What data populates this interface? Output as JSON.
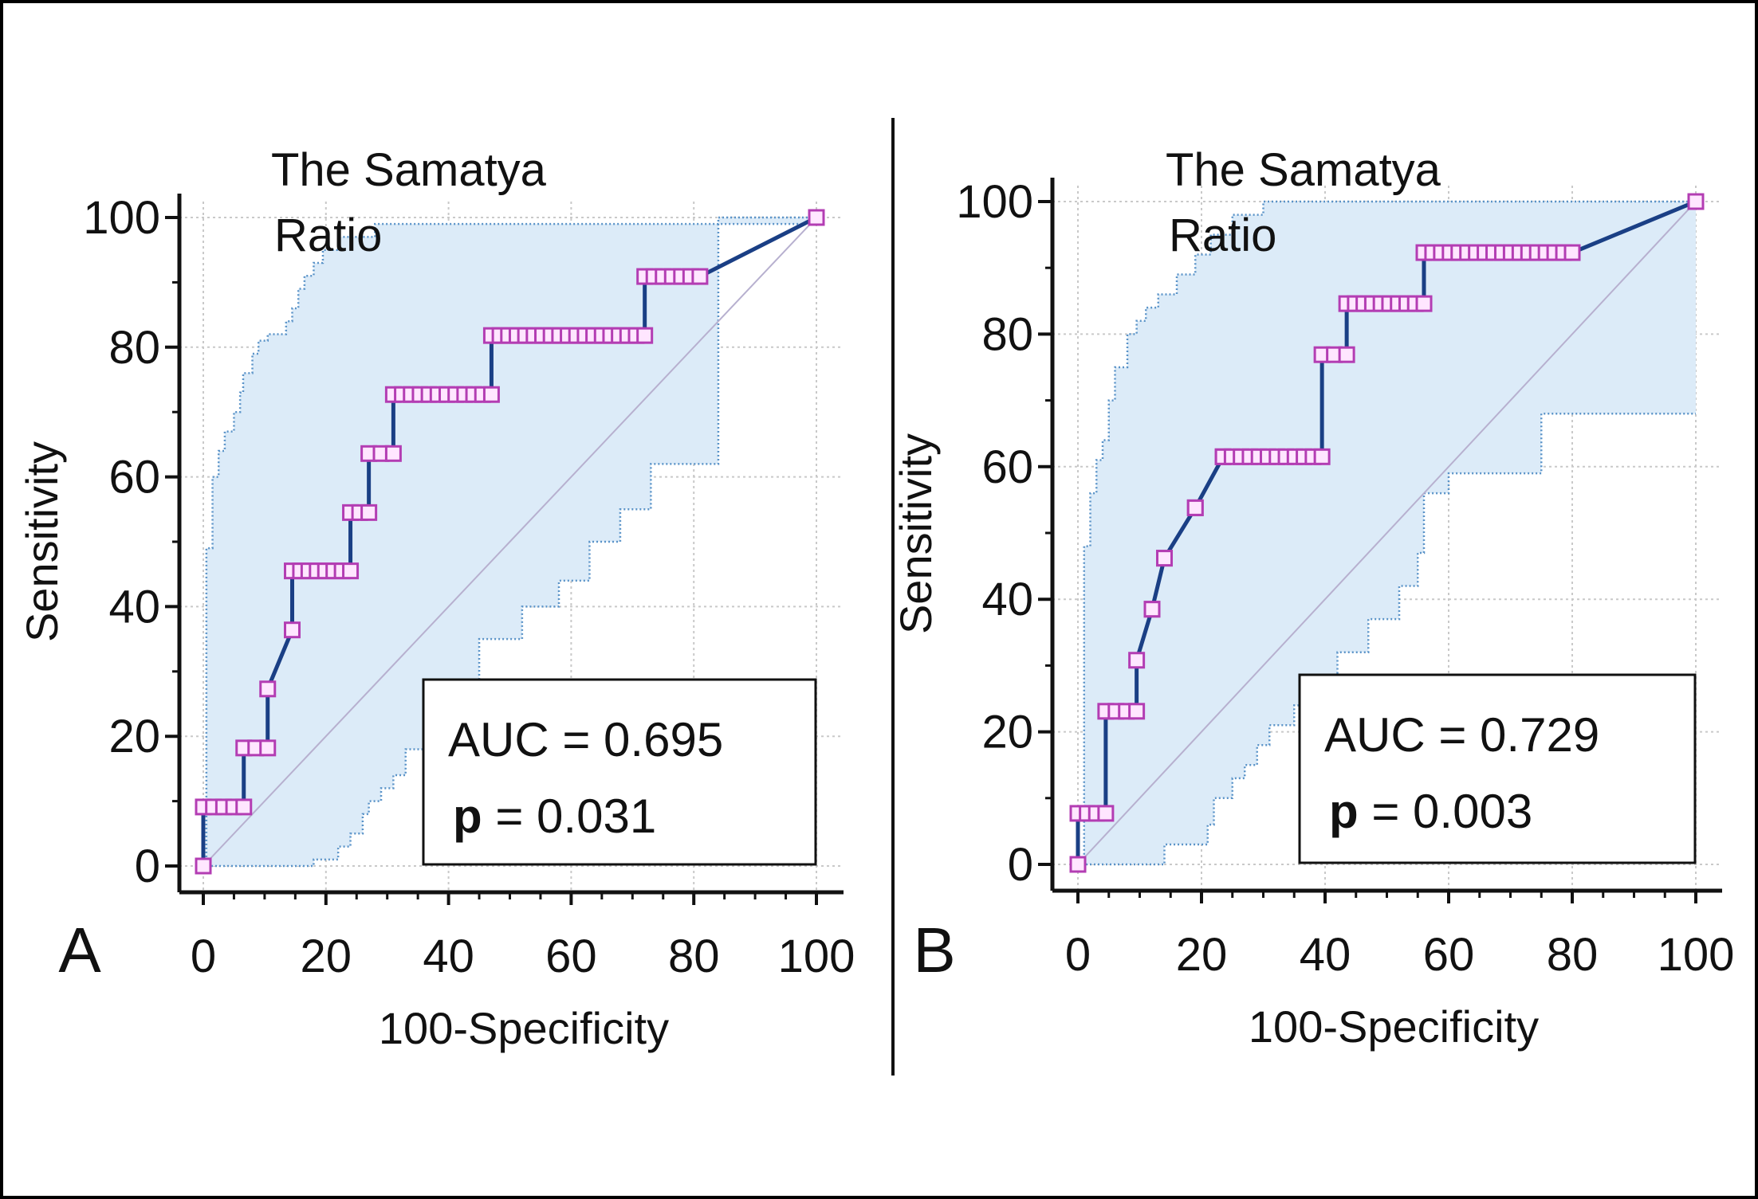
{
  "figure": {
    "panels": [
      {
        "label": "A",
        "title_line1": "The Samatya",
        "title_line2": "Ratio",
        "auc_text": "AUC = 0.695",
        "p_prefix": "p",
        "p_value_text": " = 0.031"
      },
      {
        "label": "B",
        "title_line1": "The Samatya",
        "title_line2": "Ratio",
        "auc_text": "AUC = 0.729",
        "p_prefix": "p",
        "p_value_text": " = 0.003"
      }
    ]
  },
  "colors": {
    "roc_line": "#1a3f85",
    "marker_edge": "#b33db3",
    "marker_fill": "#ffe6ff",
    "ci_fill": "#dcebf8",
    "ci_line": "#5a93c8",
    "diagonal": "#b7b0cf",
    "grid": "#c9c9c9"
  },
  "chart_data": [
    {
      "type": "line",
      "panel": "A",
      "title": "The Samatya Ratio",
      "xlabel": "100-Specificity",
      "ylabel": "Sensitivity",
      "xlim": [
        0,
        100
      ],
      "ylim": [
        0,
        100
      ],
      "xticks": [
        0,
        20,
        40,
        60,
        80,
        100
      ],
      "yticks": [
        0,
        20,
        40,
        60,
        80,
        100
      ],
      "grid": true,
      "annotation": {
        "auc": 0.695,
        "p": 0.031
      },
      "roc": {
        "x": [
          0,
          0,
          6.6,
          6.6,
          10.5,
          10.5,
          14.5,
          14.5,
          24,
          24,
          27,
          27,
          31,
          31,
          47,
          47,
          72,
          72,
          81,
          100
        ],
        "y": [
          0,
          9.1,
          9.1,
          18.2,
          18.2,
          27.3,
          36.4,
          45.5,
          45.5,
          54.5,
          54.5,
          63.6,
          63.6,
          72.7,
          72.7,
          81.8,
          81.8,
          90.9,
          90.9,
          100
        ]
      },
      "ci_upper": {
        "x": [
          0,
          0.5,
          1.5,
          2.5,
          3.5,
          5,
          6,
          6.5,
          8,
          9,
          10.5,
          13,
          13.5,
          14.5,
          15.5,
          16.5,
          18,
          19.5,
          22,
          28,
          35,
          100
        ],
        "y": [
          0,
          49,
          60,
          64,
          67,
          70,
          73,
          76,
          79,
          81,
          82,
          82,
          84,
          86,
          89,
          91,
          93,
          95,
          97,
          99,
          99,
          100
        ]
      },
      "ci_lower": {
        "x": [
          0,
          18,
          22,
          24,
          26,
          27,
          29,
          31,
          33,
          36,
          39,
          45,
          52,
          58,
          63,
          68,
          73,
          84,
          100
        ],
        "y": [
          0,
          0,
          1,
          3,
          5,
          8,
          10,
          12,
          14,
          18,
          22,
          27,
          35,
          40,
          44,
          50,
          55,
          62,
          100
        ]
      }
    },
    {
      "type": "line",
      "panel": "B",
      "title": "The Samatya Ratio",
      "xlabel": "100-Specificity",
      "ylabel": "Sensitivity",
      "xlim": [
        0,
        100
      ],
      "ylim": [
        0,
        100
      ],
      "xticks": [
        0,
        20,
        40,
        60,
        80,
        100
      ],
      "yticks": [
        0,
        20,
        40,
        60,
        80,
        100
      ],
      "grid": true,
      "annotation": {
        "auc": 0.729,
        "p": 0.003
      },
      "roc": {
        "x": [
          0,
          0,
          4.5,
          4.5,
          9.5,
          9.5,
          12,
          12,
          14,
          14,
          19,
          19,
          23.5,
          23.5,
          39.5,
          39.5,
          43.5,
          43.5,
          56,
          56,
          80,
          100
        ],
        "y": [
          0,
          7.7,
          7.7,
          23.1,
          23.1,
          30.8,
          38.5,
          38.5,
          46.2,
          46.2,
          53.8,
          53.8,
          61.5,
          61.5,
          61.5,
          76.9,
          76.9,
          84.6,
          84.6,
          92.3,
          92.3,
          100
        ]
      },
      "ci_upper": {
        "x": [
          0,
          1,
          2,
          3,
          4,
          5,
          6,
          8,
          9.5,
          11,
          13,
          16,
          19,
          21.5,
          25,
          30,
          100
        ],
        "y": [
          0,
          48,
          56,
          61,
          64,
          70,
          75,
          80,
          82,
          84,
          86,
          89,
          92,
          95,
          98,
          100,
          100
        ]
      },
      "ci_lower": {
        "x": [
          0,
          14,
          21,
          22,
          25,
          27,
          29,
          31,
          35,
          39,
          42,
          47,
          52,
          55,
          56,
          60,
          75,
          100
        ],
        "y": [
          0,
          0,
          3,
          6,
          10,
          13,
          15,
          18,
          21,
          24,
          28,
          32,
          37,
          42,
          47,
          56,
          59,
          68
        ]
      }
    }
  ]
}
